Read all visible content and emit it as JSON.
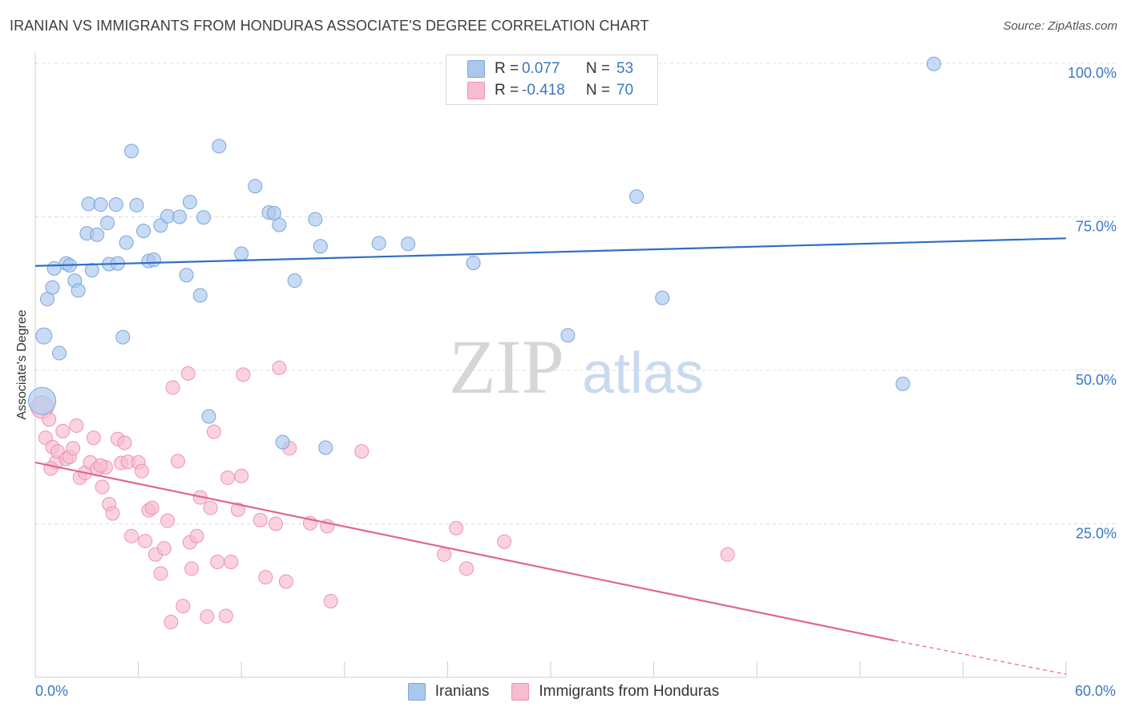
{
  "title": "IRANIAN VS IMMIGRANTS FROM HONDURAS ASSOCIATE'S DEGREE CORRELATION CHART",
  "source": "Source: ZipAtlas.com",
  "watermark": {
    "zip": "ZIP",
    "atlas": "atlas"
  },
  "legend": {
    "rows": [
      {
        "r_label": "R =",
        "r_value": "0.077",
        "n_label": "N =",
        "n_value": "53",
        "color": "#aac8ee"
      },
      {
        "r_label": "R =",
        "r_value": "-0.418",
        "n_label": "N =",
        "n_value": "70",
        "color": "#f7bccd"
      }
    ]
  },
  "bottom_legend": [
    "Iranians",
    "Immigrants from Honduras"
  ],
  "x_axis": {
    "min_label": "0.0%",
    "max_label": "60.0%"
  },
  "chart_data": {
    "type": "scatter",
    "title": "IRANIAN VS IMMIGRANTS FROM HONDURAS ASSOCIATE'S DEGREE CORRELATION CHART",
    "xlabel": "",
    "ylabel": "Associate's Degree",
    "xlim": [
      0,
      60
    ],
    "ylim": [
      0,
      104
    ],
    "y_ticks": [
      25,
      50,
      75,
      100
    ],
    "y_tick_labels": [
      "25.0%",
      "50.0%",
      "75.0%",
      "100.0%"
    ],
    "x_tick_labels": [
      "0.0%",
      "60.0%"
    ],
    "grid": true,
    "colors": {
      "iranians": "#aac8ee",
      "iranians_stroke": "#7aa6da",
      "iranians_line": "#2f6fc7",
      "honduras": "#f7bccd",
      "honduras_stroke": "#ec94af",
      "honduras_line": "#e0668f"
    },
    "series": [
      {
        "name": "Iranians",
        "trend": {
          "x0": 0,
          "y0": 67.0,
          "x1": 60,
          "y1": 71.5
        },
        "points": [
          [
            0.4,
            45.0
          ],
          [
            0.5,
            55.6
          ],
          [
            0.7,
            61.6
          ],
          [
            1.0,
            63.5
          ],
          [
            1.1,
            66.6
          ],
          [
            1.4,
            52.8
          ],
          [
            1.8,
            67.4
          ],
          [
            2.0,
            67.1
          ],
          [
            2.3,
            64.6
          ],
          [
            2.5,
            63.0
          ],
          [
            3.0,
            72.3
          ],
          [
            3.1,
            77.1
          ],
          [
            3.3,
            66.3
          ],
          [
            3.6,
            72.1
          ],
          [
            3.8,
            77.0
          ],
          [
            4.2,
            74.0
          ],
          [
            4.3,
            67.3
          ],
          [
            4.7,
            77.0
          ],
          [
            4.8,
            67.4
          ],
          [
            5.1,
            55.4
          ],
          [
            5.3,
            70.8
          ],
          [
            5.6,
            85.7
          ],
          [
            5.9,
            76.9
          ],
          [
            6.3,
            72.7
          ],
          [
            6.6,
            67.8
          ],
          [
            6.9,
            68.0
          ],
          [
            7.3,
            73.6
          ],
          [
            7.7,
            75.1
          ],
          [
            8.4,
            75.0
          ],
          [
            8.8,
            65.5
          ],
          [
            9.0,
            77.4
          ],
          [
            9.6,
            62.2
          ],
          [
            9.8,
            74.9
          ],
          [
            10.1,
            42.5
          ],
          [
            10.7,
            86.5
          ],
          [
            12.0,
            69.0
          ],
          [
            12.8,
            80.0
          ],
          [
            13.6,
            75.7
          ],
          [
            13.9,
            75.6
          ],
          [
            14.2,
            73.7
          ],
          [
            14.4,
            38.3
          ],
          [
            15.1,
            64.6
          ],
          [
            16.3,
            74.6
          ],
          [
            16.6,
            70.2
          ],
          [
            16.9,
            37.4
          ],
          [
            20.0,
            70.7
          ],
          [
            21.7,
            70.6
          ],
          [
            25.5,
            67.5
          ],
          [
            31.0,
            55.7
          ],
          [
            35.0,
            78.3
          ],
          [
            36.5,
            61.8
          ],
          [
            50.5,
            47.8
          ],
          [
            52.3,
            99.9
          ]
        ]
      },
      {
        "name": "Immigrants from Honduras",
        "trend": {
          "x0": 0,
          "y0": 35.0,
          "x1": 50,
          "y1": 6.0
        },
        "trend_extension": {
          "x0": 50,
          "y0": 6.0,
          "x1": 60,
          "y1": 0.5
        },
        "points": [
          [
            0.4,
            44.0
          ],
          [
            0.6,
            39.0
          ],
          [
            0.8,
            42.0
          ],
          [
            1.0,
            37.5
          ],
          [
            1.2,
            35.0
          ],
          [
            1.3,
            36.8
          ],
          [
            1.6,
            40.1
          ],
          [
            1.8,
            35.6
          ],
          [
            2.0,
            35.9
          ],
          [
            2.2,
            37.3
          ],
          [
            2.4,
            41.0
          ],
          [
            2.6,
            32.5
          ],
          [
            2.9,
            33.3
          ],
          [
            3.2,
            35.0
          ],
          [
            3.4,
            39.0
          ],
          [
            3.6,
            33.9
          ],
          [
            3.9,
            31.0
          ],
          [
            4.1,
            34.2
          ],
          [
            4.3,
            28.2
          ],
          [
            4.5,
            26.7
          ],
          [
            4.8,
            38.8
          ],
          [
            5.0,
            34.9
          ],
          [
            5.2,
            38.2
          ],
          [
            5.4,
            35.1
          ],
          [
            5.6,
            23.0
          ],
          [
            6.0,
            35.0
          ],
          [
            6.2,
            33.6
          ],
          [
            6.4,
            22.2
          ],
          [
            6.6,
            27.2
          ],
          [
            6.8,
            27.6
          ],
          [
            7.0,
            20.0
          ],
          [
            7.3,
            16.9
          ],
          [
            7.5,
            21.0
          ],
          [
            7.7,
            25.5
          ],
          [
            7.9,
            9.0
          ],
          [
            8.0,
            47.2
          ],
          [
            8.3,
            35.2
          ],
          [
            8.6,
            11.6
          ],
          [
            8.9,
            49.5
          ],
          [
            9.0,
            22.0
          ],
          [
            9.1,
            17.7
          ],
          [
            9.4,
            23.0
          ],
          [
            9.6,
            29.3
          ],
          [
            10.0,
            9.9
          ],
          [
            10.2,
            27.6
          ],
          [
            10.4,
            40.0
          ],
          [
            10.6,
            18.8
          ],
          [
            11.1,
            10.0
          ],
          [
            11.2,
            32.5
          ],
          [
            11.4,
            18.8
          ],
          [
            11.8,
            27.3
          ],
          [
            12.0,
            32.8
          ],
          [
            12.1,
            49.3
          ],
          [
            13.1,
            25.6
          ],
          [
            13.4,
            16.3
          ],
          [
            14.0,
            25.0
          ],
          [
            14.2,
            50.4
          ],
          [
            14.6,
            15.6
          ],
          [
            14.8,
            37.3
          ],
          [
            16.0,
            25.1
          ],
          [
            17.0,
            24.6
          ],
          [
            17.2,
            12.4
          ],
          [
            19.0,
            36.8
          ],
          [
            23.8,
            20.0
          ],
          [
            24.5,
            24.3
          ],
          [
            25.1,
            17.7
          ],
          [
            27.3,
            22.1
          ],
          [
            40.3,
            20.0
          ],
          [
            0.9,
            34.0
          ],
          [
            3.8,
            34.5
          ]
        ]
      }
    ]
  }
}
